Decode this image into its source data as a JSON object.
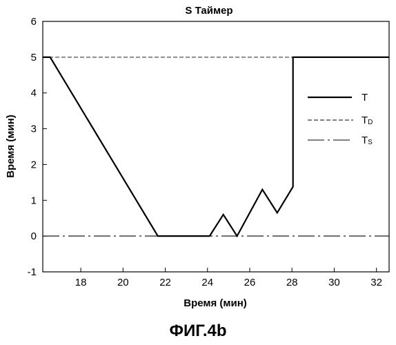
{
  "chart_data": {
    "type": "line",
    "title": "S Таймер",
    "xlabel": "Время (мин)",
    "ylabel": "Время (мин)",
    "xlim": [
      16.2,
      32.6
    ],
    "ylim": [
      -1,
      6
    ],
    "xticks": [
      18,
      20,
      22,
      24,
      26,
      28,
      30,
      32
    ],
    "yticks": [
      -1,
      0,
      1,
      2,
      3,
      4,
      5,
      6
    ],
    "xtick_labels": [
      "18",
      "20",
      "22",
      "24",
      "26",
      "28",
      "30",
      "32"
    ],
    "ytick_labels": [
      "-1",
      "0",
      "1",
      "2",
      "3",
      "4",
      "5",
      "6"
    ],
    "grid": false,
    "legend_position": "right",
    "series": [
      {
        "name": "T",
        "style": "solid",
        "x": [
          16.2,
          16.55,
          21.65,
          24.1,
          24.75,
          25.4,
          26.6,
          27.3,
          28.05,
          28.05,
          32.6
        ],
        "y": [
          5,
          5,
          0,
          0,
          0.6,
          0,
          1.3,
          0.65,
          1.38,
          5,
          5
        ]
      },
      {
        "name": "T",
        "subscript": "D",
        "style": "dashed",
        "x": [
          16.2,
          32.6
        ],
        "y": [
          5,
          5
        ]
      },
      {
        "name": "T",
        "subscript": "S",
        "style": "dash-dot",
        "x": [
          16.2,
          32.6
        ],
        "y": [
          0,
          0
        ]
      }
    ]
  },
  "caption": "ФИГ.4b",
  "colors": {
    "line": "#000000",
    "background": "#ffffff"
  }
}
